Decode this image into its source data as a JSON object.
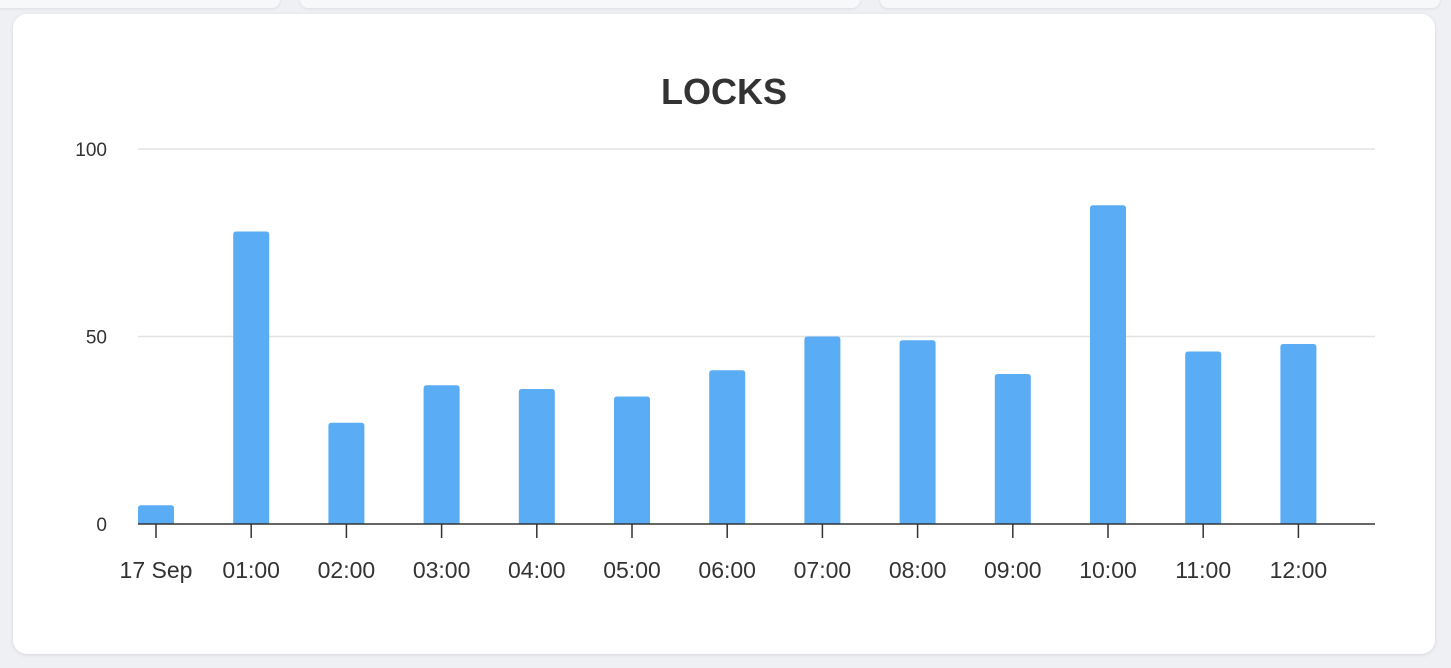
{
  "chart_data": {
    "type": "bar",
    "title": "LOCKS",
    "categories": [
      "17 Sep",
      "01:00",
      "02:00",
      "03:00",
      "04:00",
      "05:00",
      "06:00",
      "07:00",
      "08:00",
      "09:00",
      "10:00",
      "11:00",
      "12:00"
    ],
    "series": [
      {
        "values": [
          5,
          78,
          27,
          37,
          36,
          34,
          41,
          50,
          49,
          40,
          85,
          46,
          48
        ]
      }
    ],
    "ylim": [
      0,
      100
    ],
    "yticks": [
      0,
      50,
      100
    ],
    "grid": true,
    "legend": "none",
    "colors": {
      "bar": "#5aacf5",
      "grid": "#e4e4e4",
      "axis": "#333333",
      "text": "#333333"
    }
  }
}
